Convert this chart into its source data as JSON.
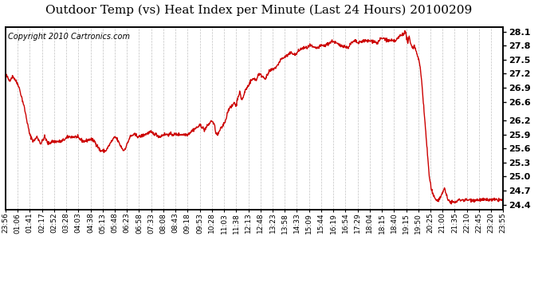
{
  "title": "Outdoor Temp (vs) Heat Index per Minute (Last 24 Hours) 20100209",
  "copyright": "Copyright 2010 Cartronics.com",
  "line_color": "#cc0000",
  "background_color": "#ffffff",
  "plot_bg_color": "#ffffff",
  "grid_color": "#bbbbbb",
  "yticks": [
    24.4,
    24.7,
    25.0,
    25.3,
    25.6,
    25.9,
    26.2,
    26.6,
    26.9,
    27.2,
    27.5,
    27.8,
    28.1
  ],
  "ylim": [
    24.3,
    28.2
  ],
  "xtick_labels": [
    "23:56",
    "01:06",
    "01:41",
    "02:17",
    "02:52",
    "03:28",
    "04:03",
    "04:38",
    "05:13",
    "05:48",
    "06:23",
    "06:58",
    "07:33",
    "08:08",
    "08:43",
    "09:18",
    "09:53",
    "10:28",
    "11:03",
    "11:38",
    "12:13",
    "12:48",
    "13:23",
    "13:58",
    "14:33",
    "15:09",
    "15:44",
    "16:19",
    "16:54",
    "17:29",
    "18:04",
    "18:15",
    "18:40",
    "19:15",
    "19:50",
    "20:25",
    "21:00",
    "21:35",
    "22:10",
    "22:45",
    "23:20",
    "23:55"
  ],
  "title_fontsize": 11,
  "copyright_fontsize": 7,
  "tick_fontsize": 6.5,
  "ytick_fontsize": 8,
  "line_width": 1.0
}
